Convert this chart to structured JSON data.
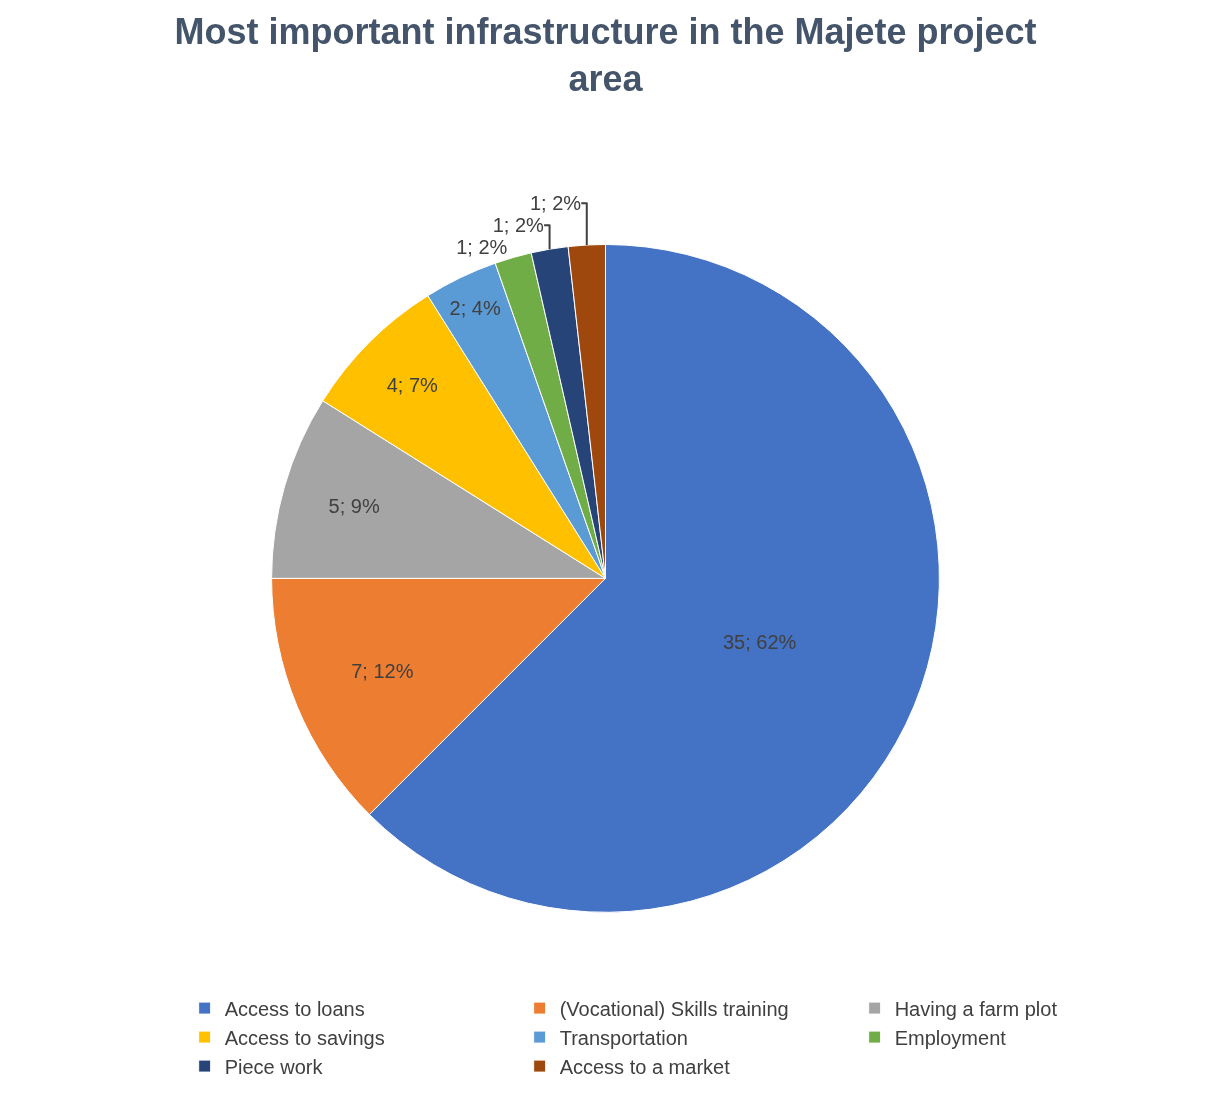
{
  "chart_data": {
    "type": "pie",
    "title": "Most important infrastructure in the Majete project area",
    "categories": [
      "Access to loans",
      "(Vocational) Skills training",
      "Having a farm plot",
      "Access to savings",
      "Transportation",
      "Employment",
      "Piece work",
      "Access to a market"
    ],
    "values": [
      35,
      7,
      5,
      4,
      2,
      1,
      1,
      1
    ],
    "value_labels": [
      "35; 62%",
      "7; 12%",
      "5; 9%",
      "4; 7%",
      "2; 4%",
      "1; 2%",
      "1; 2%",
      "1; 2%"
    ],
    "colors": [
      "#4472c4",
      "#ed7d31",
      "#a5a5a5",
      "#ffc000",
      "#5b9bd5",
      "#70ad47",
      "#264478",
      "#9e480e"
    ],
    "legend": "bottom"
  }
}
